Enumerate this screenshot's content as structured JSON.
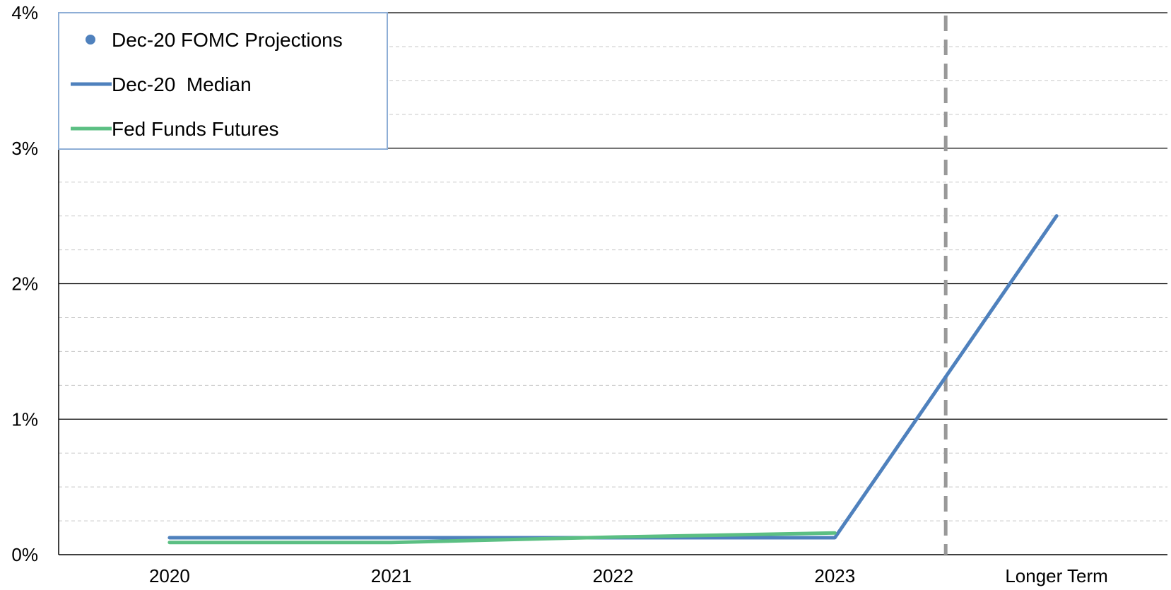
{
  "chart_data": {
    "type": "line",
    "title": "",
    "xlabel": "",
    "ylabel": "",
    "categories": [
      "2020",
      "2021",
      "2022",
      "2023",
      "Longer Term"
    ],
    "ylim": [
      0,
      4
    ],
    "y_ticks": [
      "0%",
      "1%",
      "2%",
      "3%",
      "4%"
    ],
    "grid": "major solid, minor dashed",
    "legend_position": "top-left",
    "series": [
      {
        "name": "Dec-20 FOMC Projections",
        "kind": "dots",
        "color": "#4f81bd",
        "values": [
          null,
          null,
          null,
          null,
          null
        ]
      },
      {
        "name": "Dec-20  Median",
        "kind": "line",
        "color": "#4f81bd",
        "values": [
          0.125,
          0.125,
          0.125,
          0.125,
          2.5
        ]
      },
      {
        "name": "Fed Funds Futures",
        "kind": "line",
        "color": "#5bbf83",
        "values": [
          0.09,
          0.09,
          0.13,
          0.16,
          null
        ]
      }
    ],
    "separator": {
      "between": [
        "2023",
        "Longer Term"
      ],
      "color": "#999999",
      "style": "dashed"
    }
  }
}
